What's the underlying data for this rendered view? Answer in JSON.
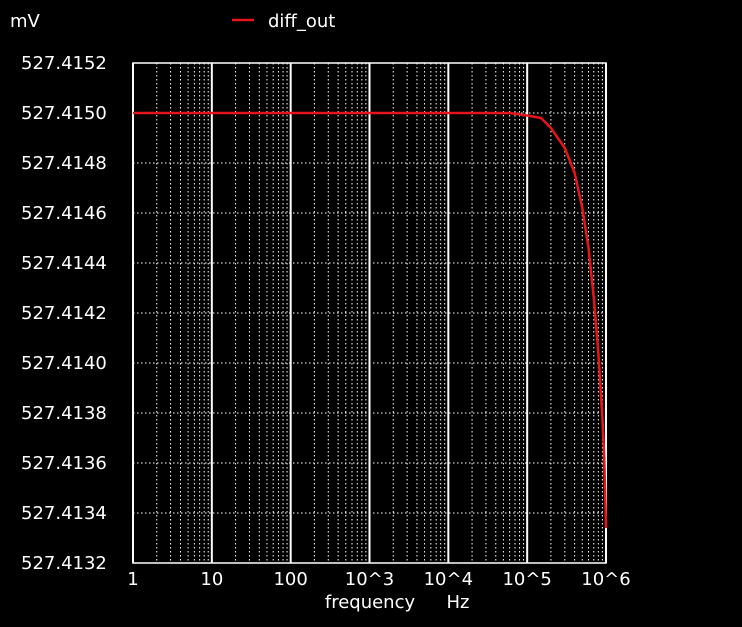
{
  "chart_data": {
    "type": "line",
    "title": "",
    "ylabel": "mV",
    "xlabel": "frequency",
    "xunit": "Hz",
    "xscale": "log",
    "xlim": [
      1,
      1000000
    ],
    "ylim": [
      527.4132,
      527.4152
    ],
    "x_ticks": [
      {
        "value": 1,
        "label": "1"
      },
      {
        "value": 10,
        "label": "10"
      },
      {
        "value": 100,
        "label": "100"
      },
      {
        "value": 1000,
        "label": "10^3"
      },
      {
        "value": 10000,
        "label": "10^4"
      },
      {
        "value": 100000,
        "label": "10^5"
      },
      {
        "value": 1000000,
        "label": "10^6"
      }
    ],
    "y_ticks": [
      {
        "value": 527.4152,
        "label": "527.4152"
      },
      {
        "value": 527.415,
        "label": "527.4150"
      },
      {
        "value": 527.4148,
        "label": "527.4148"
      },
      {
        "value": 527.4146,
        "label": "527.4146"
      },
      {
        "value": 527.4144,
        "label": "527.4144"
      },
      {
        "value": 527.4142,
        "label": "527.4142"
      },
      {
        "value": 527.414,
        "label": "527.4140"
      },
      {
        "value": 527.4138,
        "label": "527.4138"
      },
      {
        "value": 527.4136,
        "label": "527.4136"
      },
      {
        "value": 527.4134,
        "label": "527.4134"
      },
      {
        "value": 527.4132,
        "label": "527.4132"
      }
    ],
    "grid": true,
    "legend": "top-center",
    "series": [
      {
        "name": "diff_out",
        "color": "#e8141c",
        "x": [
          1,
          10,
          100,
          1000,
          10000,
          30000,
          60000,
          100000,
          150000,
          200000,
          300000,
          400000,
          500000,
          600000,
          700000,
          800000,
          900000,
          950000,
          1000000
        ],
        "y": [
          527.415,
          527.415,
          527.415,
          527.415,
          527.415,
          527.415,
          527.415,
          527.41499,
          527.41498,
          527.41494,
          527.41486,
          527.41476,
          527.41462,
          527.41446,
          527.41426,
          527.41404,
          527.41378,
          527.41362,
          527.41334
        ]
      }
    ]
  }
}
